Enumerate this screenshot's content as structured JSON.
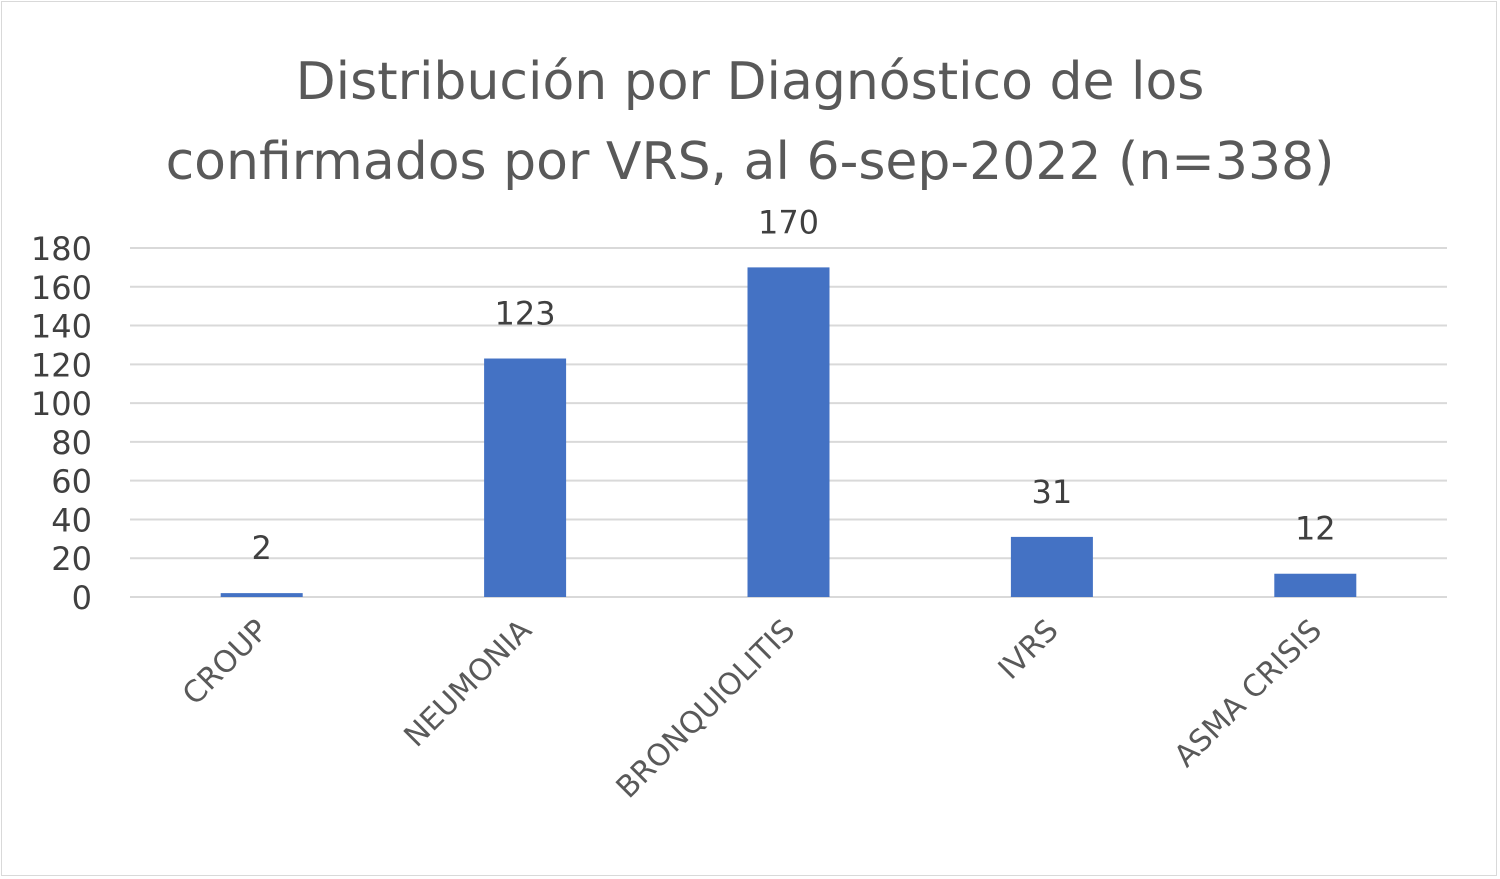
{
  "chart_data": {
    "type": "bar",
    "title_lines": [
      "Distribución por Diagnóstico de los",
      "confirmados por VRS, al 6-sep-2022 (n=338)"
    ],
    "categories": [
      "CROUP",
      "NEUMONIA",
      "BRONQUIOLITIS",
      "IVRS",
      "ASMA CRISIS"
    ],
    "values": [
      2,
      123,
      170,
      31,
      12
    ],
    "data_labels": [
      "2",
      "123",
      "170",
      "31",
      "12"
    ],
    "ylim": [
      0,
      180
    ],
    "yticks": [
      "0",
      "20",
      "40",
      "60",
      "80",
      "100",
      "120",
      "140",
      "160",
      "180"
    ],
    "grid": true,
    "legend": "none",
    "bar_color": "#4472c4",
    "grid_color": "#d9d9d9"
  }
}
